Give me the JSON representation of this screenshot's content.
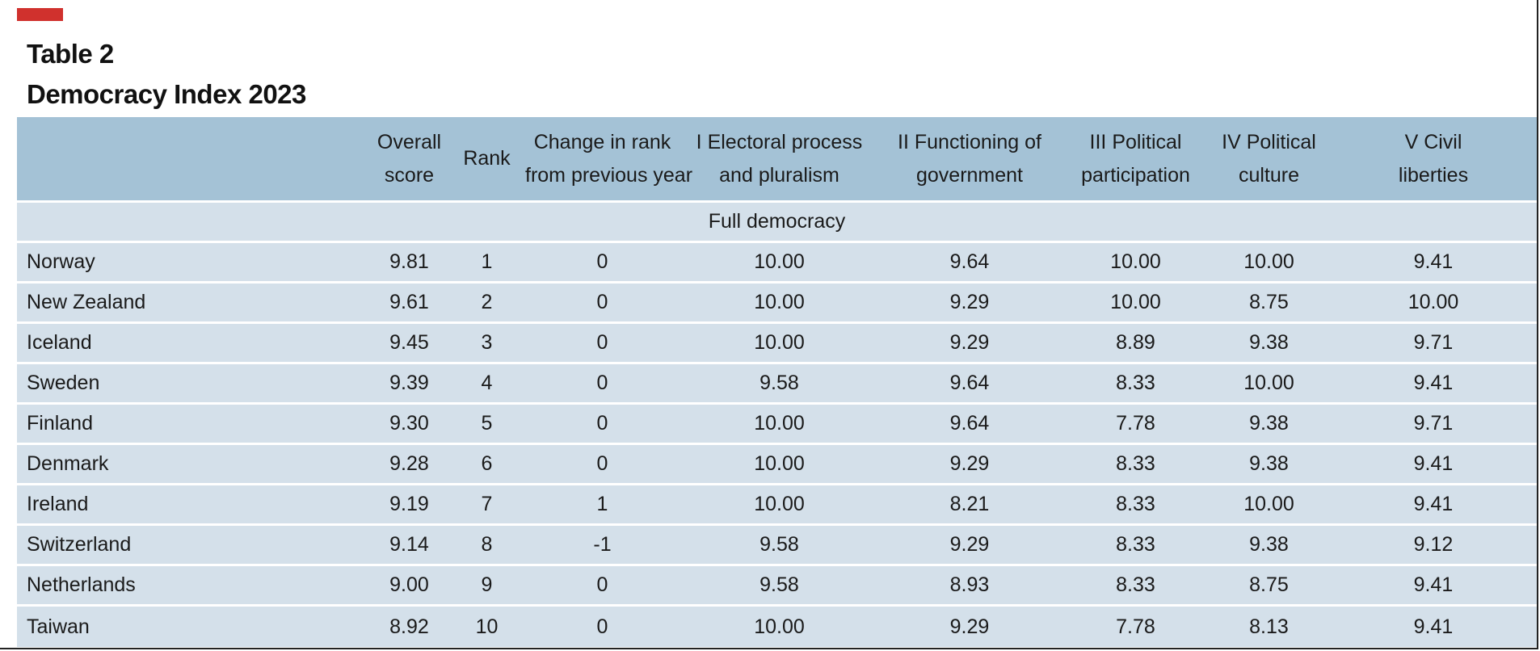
{
  "table_label": "Table 2",
  "title": "Democracy Index 2023",
  "columns": [
    {
      "line1": "",
      "line2": ""
    },
    {
      "line1": "Overall",
      "line2": "score"
    },
    {
      "line1": "Rank",
      "line2": ""
    },
    {
      "line1": "Change in rank",
      "line2": "from previous year"
    },
    {
      "line1": "I Electoral process",
      "line2": "and pluralism"
    },
    {
      "line1": "II Functioning of",
      "line2": "government"
    },
    {
      "line1": "III Political",
      "line2": "participation"
    },
    {
      "line1": "IV Political",
      "line2": "culture"
    },
    {
      "line1": "V Civil",
      "line2": "liberties"
    }
  ],
  "section_label": "Full democracy",
  "rows": [
    [
      "Norway",
      "9.81",
      "1",
      "0",
      "10.00",
      "9.64",
      "10.00",
      "10.00",
      "9.41"
    ],
    [
      "New Zealand",
      "9.61",
      "2",
      "0",
      "10.00",
      "9.29",
      "10.00",
      "8.75",
      "10.00"
    ],
    [
      "Iceland",
      "9.45",
      "3",
      "0",
      "10.00",
      "9.29",
      "8.89",
      "9.38",
      "9.71"
    ],
    [
      "Sweden",
      "9.39",
      "4",
      "0",
      "9.58",
      "9.64",
      "8.33",
      "10.00",
      "9.41"
    ],
    [
      "Finland",
      "9.30",
      "5",
      "0",
      "10.00",
      "9.64",
      "7.78",
      "9.38",
      "9.71"
    ],
    [
      "Denmark",
      "9.28",
      "6",
      "0",
      "10.00",
      "9.29",
      "8.33",
      "9.38",
      "9.41"
    ],
    [
      "Ireland",
      "9.19",
      "7",
      "1",
      "10.00",
      "8.21",
      "8.33",
      "10.00",
      "9.41"
    ],
    [
      "Switzerland",
      "9.14",
      "8",
      "-1",
      "9.58",
      "9.29",
      "8.33",
      "9.38",
      "9.12"
    ],
    [
      "Netherlands",
      "9.00",
      "9",
      "0",
      "9.58",
      "8.93",
      "8.33",
      "8.75",
      "9.41"
    ],
    [
      "Taiwan",
      "8.92",
      "10",
      "0",
      "10.00",
      "9.29",
      "7.78",
      "8.13",
      "9.41"
    ]
  ],
  "colors": {
    "accent": "#d0312d",
    "header_bg": "#a4c2d6",
    "row_bg": "#d4e0ea"
  }
}
